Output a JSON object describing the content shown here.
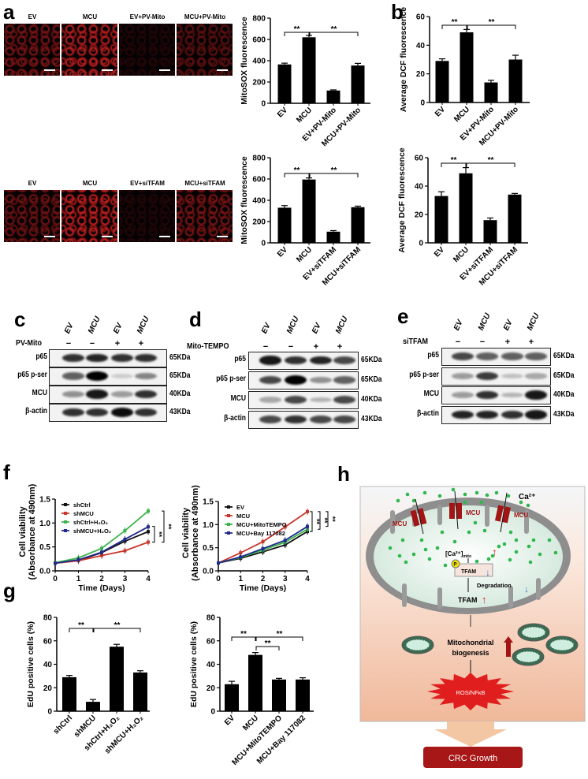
{
  "panel_letters": {
    "a": "a",
    "b": "b",
    "c": "c",
    "d": "d",
    "e": "e",
    "f": "f",
    "g": "g",
    "h": "h"
  },
  "micrographs": [
    {
      "labels": [
        "EV",
        "MCU",
        "EV+PV-Mito",
        "MCU+PV-Mito"
      ],
      "signal": [
        0.6,
        0.9,
        0.15,
        0.45
      ]
    },
    {
      "labels": [
        "EV",
        "MCU",
        "EV+siTFAM",
        "MCU+siTFAM"
      ],
      "signal": [
        0.55,
        0.95,
        0.15,
        0.6
      ]
    }
  ],
  "blots": [
    {
      "treatment": "PV-Mito",
      "lanes": [
        "EV",
        "MCU",
        "EV",
        "MCU"
      ],
      "signs": [
        "−",
        "−",
        "+",
        "+"
      ],
      "rows": [
        {
          "protein": "p65",
          "kda": "65KDa",
          "intensity": [
            0.8,
            0.85,
            0.8,
            0.8
          ]
        },
        {
          "protein": "p65 p-ser",
          "kda": "65KDa",
          "intensity": [
            0.6,
            1,
            0.15,
            0.45
          ]
        },
        {
          "protein": "MCU",
          "kda": "40KDa",
          "intensity": [
            0.4,
            0.9,
            0.35,
            0.8
          ]
        },
        {
          "protein": "β-actin",
          "kda": "43KDa",
          "intensity": [
            0.8,
            0.8,
            0.95,
            0.8
          ]
        }
      ]
    },
    {
      "treatment": "Mito-TEMPO",
      "lanes": [
        "EV",
        "MCU",
        "EV",
        "MCU"
      ],
      "signs": [
        "−",
        "−",
        "+",
        "+"
      ],
      "rows": [
        {
          "protein": "p65",
          "kda": "65KDa",
          "intensity": [
            0.9,
            0.8,
            0.85,
            0.7
          ]
        },
        {
          "protein": "p65 p-ser",
          "kda": "65KDa",
          "intensity": [
            0.7,
            1,
            0.4,
            0.6
          ]
        },
        {
          "protein": "MCU",
          "kda": "40KDa",
          "intensity": [
            0.3,
            0.7,
            0.25,
            0.7
          ]
        },
        {
          "protein": "β-actin",
          "kda": "43KDa",
          "intensity": [
            0.7,
            0.8,
            0.7,
            0.7
          ]
        }
      ]
    },
    {
      "treatment": "siTFAM",
      "lanes": [
        "EV",
        "MCU",
        "EV",
        "MCU"
      ],
      "signs": [
        "−",
        "−",
        "+",
        "+"
      ],
      "rows": [
        {
          "protein": "p65",
          "kda": "65KDa",
          "intensity": [
            0.7,
            0.6,
            0.6,
            0.6
          ]
        },
        {
          "protein": "p65 p-ser",
          "kda": "65KDa",
          "intensity": [
            0.35,
            0.75,
            0.2,
            0.3
          ]
        },
        {
          "protein": "MCU",
          "kda": "40KDa",
          "intensity": [
            0.35,
            0.8,
            0.25,
            0.9
          ]
        },
        {
          "protein": "β-actin",
          "kda": "43KDa",
          "intensity": [
            0.85,
            0.85,
            0.8,
            0.9
          ]
        }
      ]
    }
  ],
  "chart_data": [
    {
      "id": "a1",
      "type": "bar",
      "ylabel": "MitoSOX fluorescence",
      "categories": [
        "EV",
        "MCU",
        "EV+PV-Mito",
        "MCU+PV-Mito"
      ],
      "values": [
        365,
        620,
        120,
        355
      ],
      "errors": [
        12,
        18,
        6,
        20
      ],
      "ylim": [
        0,
        800
      ],
      "yticks": [
        0,
        200,
        400,
        600,
        800
      ],
      "significance": [
        {
          "pair": [
            0,
            1
          ],
          "label": "**"
        },
        {
          "pair": [
            1,
            3
          ],
          "label": "**"
        }
      ]
    },
    {
      "id": "b1",
      "type": "bar",
      "ylabel": "Average DCF fluorescence",
      "categories": [
        "EV",
        "MCU",
        "EV+PV-Mito",
        "MCU+PV-Mito"
      ],
      "values": [
        29,
        49,
        14,
        30
      ],
      "errors": [
        1.5,
        2,
        1.5,
        3
      ],
      "ylim": [
        0,
        60
      ],
      "yticks": [
        0,
        20,
        40,
        60
      ],
      "significance": [
        {
          "pair": [
            0,
            1
          ],
          "label": "**"
        },
        {
          "pair": [
            1,
            3
          ],
          "label": "**"
        }
      ]
    },
    {
      "id": "a2",
      "type": "bar",
      "ylabel": "MitoSOX fluorescence",
      "categories": [
        "EV",
        "MCU",
        "EV+siTFAM",
        "MCU+siTFAM"
      ],
      "values": [
        330,
        595,
        105,
        335
      ],
      "errors": [
        20,
        15,
        10,
        10
      ],
      "ylim": [
        0,
        800
      ],
      "yticks": [
        0,
        200,
        400,
        600,
        800
      ],
      "significance": [
        {
          "pair": [
            0,
            1
          ],
          "label": "**"
        },
        {
          "pair": [
            1,
            3
          ],
          "label": "**"
        }
      ]
    },
    {
      "id": "b2",
      "type": "bar",
      "ylabel": "Average DCF fluorescence",
      "categories": [
        "EV",
        "MCU",
        "EV+siTFAM",
        "MCU+siTFAM"
      ],
      "values": [
        33,
        49,
        16,
        34
      ],
      "errors": [
        3,
        4,
        1.5,
        0.8
      ],
      "ylim": [
        0,
        60
      ],
      "yticks": [
        0,
        20,
        40,
        60
      ],
      "significance": [
        {
          "pair": [
            0,
            1
          ],
          "label": "**"
        },
        {
          "pair": [
            1,
            3
          ],
          "label": "**"
        }
      ]
    },
    {
      "id": "fL",
      "type": "line",
      "ylabel": [
        "Cell viability",
        "(Absorbance at 490nm)"
      ],
      "xlabel": "Time (Days)",
      "x": [
        0,
        1,
        2,
        3,
        4
      ],
      "xlim": [
        0,
        4
      ],
      "ylim": [
        0,
        1.5
      ],
      "yticks": [
        "0.0",
        "0.5",
        "1.0",
        "1.5"
      ],
      "legend": "top-left",
      "series": [
        {
          "name": "shCtrl",
          "color": "#111111",
          "values": [
            0.16,
            0.22,
            0.38,
            0.62,
            0.82
          ]
        },
        {
          "name": "shMCU",
          "color": "#c8372d",
          "values": [
            0.16,
            0.21,
            0.32,
            0.42,
            0.6
          ]
        },
        {
          "name": "shCtrl+H₂O₂",
          "color": "#3cb44b",
          "values": [
            0.17,
            0.27,
            0.47,
            0.84,
            1.25
          ]
        },
        {
          "name": "shMCU+H₂O₂",
          "color": "#1f2a8a",
          "values": [
            0.16,
            0.23,
            0.39,
            0.66,
            0.92
          ]
        }
      ],
      "significance": [
        "**",
        "**"
      ]
    },
    {
      "id": "fR",
      "type": "line",
      "ylabel": [
        "Cell viability",
        "(Absorbance at 490nm)"
      ],
      "xlabel": "Time (Days)",
      "x": [
        0,
        1,
        2,
        3,
        4
      ],
      "xlim": [
        0,
        4
      ],
      "ylim": [
        0,
        1.5
      ],
      "yticks": [
        "0.0",
        "0.5",
        "1.0",
        "1.5"
      ],
      "legend": "top-left",
      "series": [
        {
          "name": "EV",
          "color": "#111111",
          "values": [
            0.17,
            0.27,
            0.41,
            0.56,
            0.85
          ]
        },
        {
          "name": "MCU",
          "color": "#c8372d",
          "values": [
            0.17,
            0.39,
            0.63,
            0.95,
            1.28
          ]
        },
        {
          "name": "MCU+MitoTEMPO",
          "color": "#3cb44b",
          "values": [
            0.17,
            0.29,
            0.45,
            0.62,
            0.9
          ]
        },
        {
          "name": "MCU+Bay 117082",
          "color": "#1f2a8a",
          "values": [
            0.17,
            0.3,
            0.48,
            0.66,
            0.96
          ]
        }
      ],
      "significance": [
        "**",
        "**",
        "**"
      ]
    },
    {
      "id": "gL",
      "type": "bar",
      "ylabel": "EdU positive cells (%)",
      "categories": [
        "shCtrl",
        "shMCU",
        "shCtrl+H₂O₂",
        "shMCU+H₂O₂"
      ],
      "values": [
        29,
        8,
        55,
        33
      ],
      "errors": [
        1.5,
        2,
        2,
        1.5
      ],
      "ylim": [
        0,
        80
      ],
      "yticks": [
        0,
        20,
        40,
        60,
        80
      ],
      "significance": [
        {
          "pair": [
            0,
            1
          ],
          "label": "**"
        },
        {
          "pair": [
            1,
            3
          ],
          "label": "**"
        }
      ]
    },
    {
      "id": "gR",
      "type": "bar",
      "ylabel": "EdU positive cells (%)",
      "categories": [
        "EV",
        "MCU",
        "MCU+MitoTEMPO",
        "MCU+Bay 117082"
      ],
      "values": [
        23,
        48,
        27,
        27
      ],
      "errors": [
        2.5,
        2,
        1,
        1.5
      ],
      "ylim": [
        0,
        80
      ],
      "yticks": [
        0,
        20,
        40,
        60,
        80
      ],
      "significance": [
        {
          "pair": [
            0,
            1
          ],
          "label": "**"
        },
        {
          "pair": [
            1,
            3
          ],
          "label": "**"
        },
        {
          "pair": [
            1,
            2
          ],
          "label": "**"
        }
      ]
    }
  ],
  "diagram": {
    "ca_label": "Ca²⁺",
    "mcu_label": "MCU",
    "ca_mito": "[Ca²⁺]",
    "ca_mito_sub": "mito",
    "p_label": "P",
    "tfam_box": "TFAM",
    "degradation": "Degradation",
    "tfam": "TFAM",
    "biogenesis_1": "Mitochondrial",
    "biogenesis_2": "biogenesis",
    "ros": "ROS/NFκB",
    "outcome": "CRC Growth",
    "colors": {
      "mcu": "#a31515",
      "ca_dot": "#2fb84f",
      "up_arrow": "#d0312d",
      "down_arrow": "#3a78c9",
      "outcome_bg": "#a81717"
    }
  }
}
